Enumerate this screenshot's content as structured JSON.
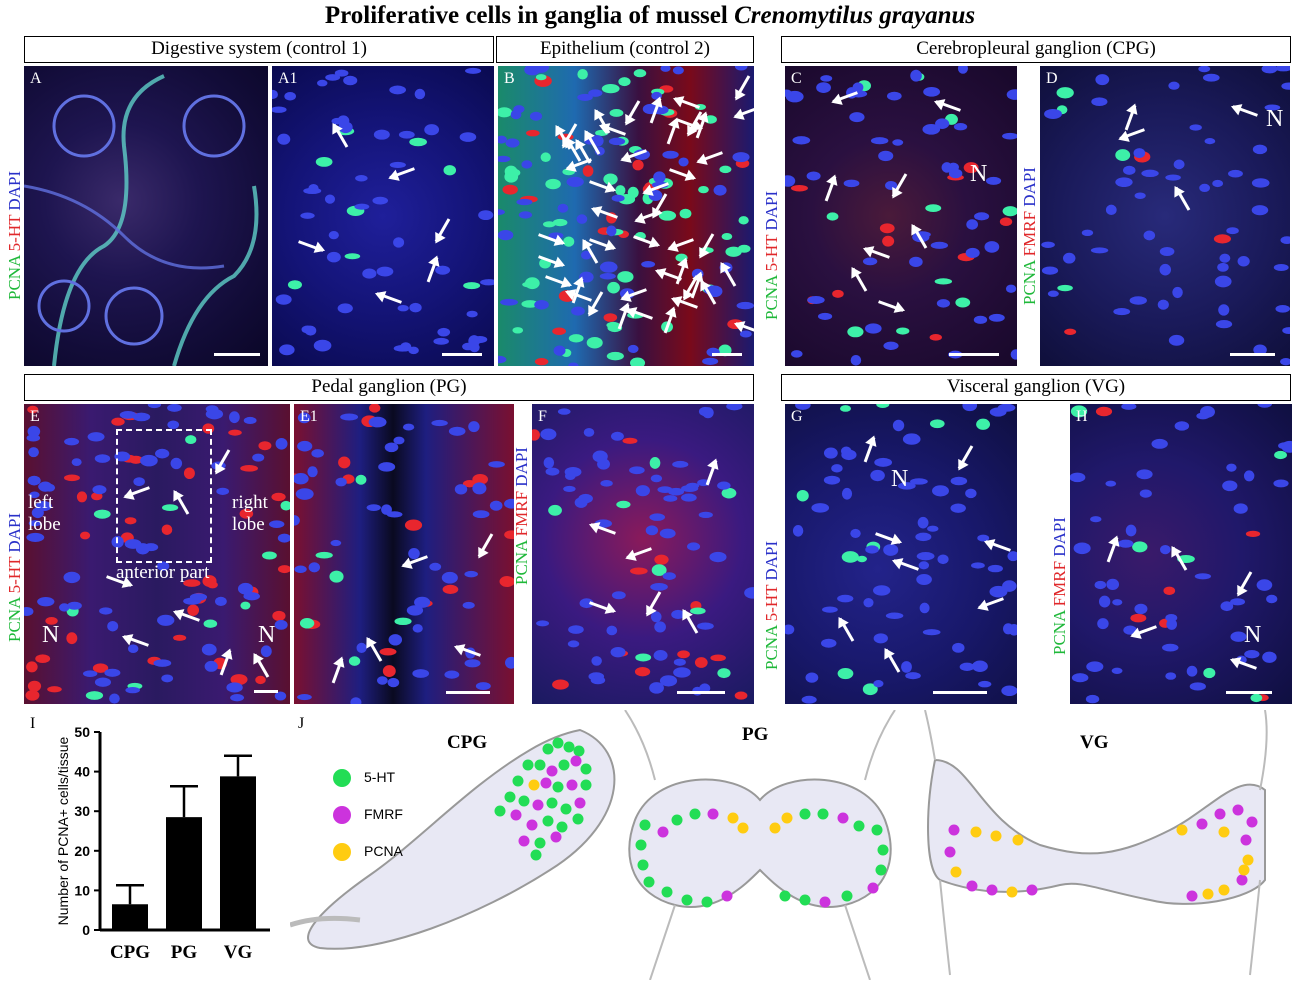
{
  "figure": {
    "title_plain": "Proliferative cells in ganglia of mussel ",
    "title_italic": "Crenomytilus grayanus"
  },
  "headers": {
    "digestive": "Digestive system (control 1)",
    "epithelium": "Epithelium (control 2)",
    "cpg": "Cerebropleural ganglion (CPG)",
    "pg": "Pedal ganglion (PG)",
    "vg": "Visceral ganglion (VG)"
  },
  "panels": {
    "A": "A",
    "A1": "A1",
    "B": "B",
    "C": "C",
    "D": "D",
    "E": "E",
    "E1": "E1",
    "F": "F",
    "G": "G",
    "H": "H",
    "I": "I",
    "J": "J"
  },
  "stains": {
    "pcna": "PCNA",
    "ht": "5-HT",
    "fmrf": "FMRF",
    "dapi": "DAPI"
  },
  "annotations": {
    "n": "N",
    "left_lobe_1": "left",
    "left_lobe_2": "lobe",
    "right_lobe_1": "right",
    "right_lobe_2": "lobe",
    "anterior_part": "anterior part"
  },
  "colors": {
    "pcna_green": "#1fb83a",
    "ht_red": "#e0282b",
    "dapi_blue": "#2a31c9",
    "dot_5ht": "#22dd55",
    "dot_fmrf": "#cc33dd",
    "dot_pcna": "#ffcc11"
  },
  "chart_data": {
    "type": "bar",
    "title": "",
    "xlabel": "",
    "ylabel": "Number of PCNA+ cells/tissue",
    "categories": [
      "CPG",
      "PG",
      "VG"
    ],
    "values": [
      6.5,
      28.5,
      38.8
    ],
    "error": [
      4.8,
      7.8,
      5.2
    ],
    "ylim": [
      0,
      50
    ],
    "yticks": [
      "0",
      "10",
      "20",
      "30",
      "40",
      "50"
    ],
    "grid": false,
    "bar_color": "#000000"
  },
  "diagram": {
    "legend": {
      "ht": "5-HT",
      "fmrf": "FMRF",
      "pcna": "PCNA"
    },
    "cpg_title": "CPG",
    "pg_title": "PG",
    "vg_title": "VG"
  }
}
